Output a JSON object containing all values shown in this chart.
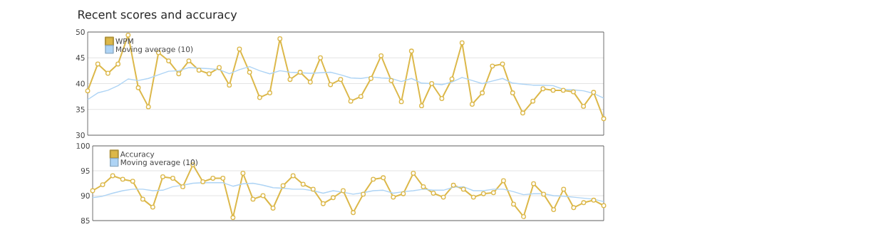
{
  "chart_data": [
    {
      "type": "line",
      "title": "Recent scores and accuracy",
      "categories": [
        null,
        null,
        null,
        null,
        null,
        null,
        null,
        null,
        null,
        null,
        null,
        null,
        null,
        null,
        null,
        null,
        null,
        null,
        null,
        null,
        null,
        null,
        null,
        null,
        null,
        null,
        null,
        null,
        null,
        null,
        null,
        null,
        null,
        null,
        null,
        null,
        null,
        null,
        null,
        null,
        null,
        null,
        null,
        null,
        null,
        null,
        null,
        null,
        null,
        null,
        null,
        null
      ],
      "ylim": [
        30,
        50
      ],
      "yticks": [
        30,
        35,
        40,
        45,
        50
      ],
      "grid": "y",
      "legend": "top left",
      "tick_labels": "y",
      "marker": "circle",
      "series": [
        {
          "name": "WPM",
          "color": "#dcb84a",
          "values": [
            38.6,
            43.8,
            42.0,
            43.8,
            49.4,
            39.2,
            35.5,
            46.0,
            44.4,
            41.9,
            44.4,
            42.6,
            41.9,
            43.1,
            39.7,
            46.7,
            42.2,
            37.3,
            38.2,
            48.7,
            40.8,
            42.2,
            40.3,
            45.0,
            39.8,
            40.8,
            36.6,
            37.5,
            41.0,
            45.4,
            40.6,
            36.5,
            46.3,
            35.7,
            40.0,
            37.1,
            40.9,
            47.9,
            36.0,
            38.2,
            43.4,
            43.8,
            38.2,
            34.3,
            36.6,
            39.0,
            38.7,
            38.7,
            38.4,
            35.6,
            38.3,
            33.2
          ]
        },
        {
          "name": "Moving average (10)",
          "color": "#aed4f5",
          "marker": "none",
          "values": [
            36.9,
            38.2,
            38.7,
            39.6,
            40.9,
            40.6,
            41.0,
            41.7,
            42.4,
            42.5,
            43.1,
            43.0,
            42.9,
            42.7,
            41.9,
            42.7,
            43.3,
            42.5,
            41.9,
            42.5,
            42.2,
            42.1,
            42.0,
            42.1,
            42.2,
            41.7,
            41.1,
            41.0,
            41.3,
            41.1,
            41.0,
            40.4,
            41.0,
            40.1,
            40.0,
            39.8,
            40.3,
            41.2,
            40.6,
            40.0,
            40.5,
            41.0,
            40.1,
            39.9,
            39.7,
            39.7,
            39.6,
            38.9,
            38.8,
            38.6,
            38.1,
            37.2
          ]
        }
      ]
    },
    {
      "type": "line",
      "categories": [
        null,
        null,
        null,
        null,
        null,
        null,
        null,
        null,
        null,
        null,
        null,
        null,
        null,
        null,
        null,
        null,
        null,
        null,
        null,
        null,
        null,
        null,
        null,
        null,
        null,
        null,
        null,
        null,
        null,
        null,
        null,
        null,
        null,
        null,
        null,
        null,
        null,
        null,
        null,
        null,
        null,
        null,
        null,
        null,
        null,
        null,
        null,
        null,
        null,
        null,
        null,
        null
      ],
      "ylim": [
        85,
        100
      ],
      "yticks": [
        85,
        90,
        95,
        100
      ],
      "grid": "y",
      "legend": "top left",
      "tick_labels": "y",
      "marker": "circle",
      "series": [
        {
          "name": "Accuracy",
          "color": "#dcb84a",
          "values": [
            91.0,
            92.2,
            94.0,
            93.3,
            92.9,
            89.3,
            87.7,
            93.8,
            93.5,
            91.8,
            96.2,
            92.8,
            93.5,
            93.5,
            85.6,
            94.5,
            89.3,
            90.0,
            87.5,
            92.0,
            94.0,
            92.3,
            91.3,
            88.4,
            89.6,
            91.0,
            86.6,
            90.3,
            93.3,
            93.6,
            89.7,
            90.4,
            94.5,
            91.8,
            90.5,
            89.7,
            92.1,
            91.3,
            89.7,
            90.4,
            90.6,
            93.0,
            88.3,
            85.8,
            92.4,
            90.3,
            87.2,
            91.3,
            87.6,
            88.6,
            89.1,
            88.0
          ]
        },
        {
          "name": "Moving average (10)",
          "color": "#aed4f5",
          "marker": "none",
          "values": [
            89.6,
            89.9,
            90.5,
            91.0,
            91.3,
            91.3,
            91.0,
            91.1,
            91.8,
            92.1,
            92.5,
            92.6,
            92.6,
            92.6,
            91.9,
            92.4,
            92.5,
            92.1,
            91.6,
            91.5,
            91.3,
            91.3,
            91.0,
            90.5,
            91.0,
            90.7,
            90.3,
            90.6,
            91.0,
            91.1,
            90.5,
            90.8,
            91.0,
            91.3,
            91.1,
            91.1,
            91.7,
            91.8,
            91.0,
            91.0,
            91.3,
            91.3,
            90.8,
            90.2,
            90.4,
            90.4,
            90.0,
            89.9,
            89.7,
            89.5,
            89.3,
            88.8
          ]
        }
      ]
    }
  ]
}
